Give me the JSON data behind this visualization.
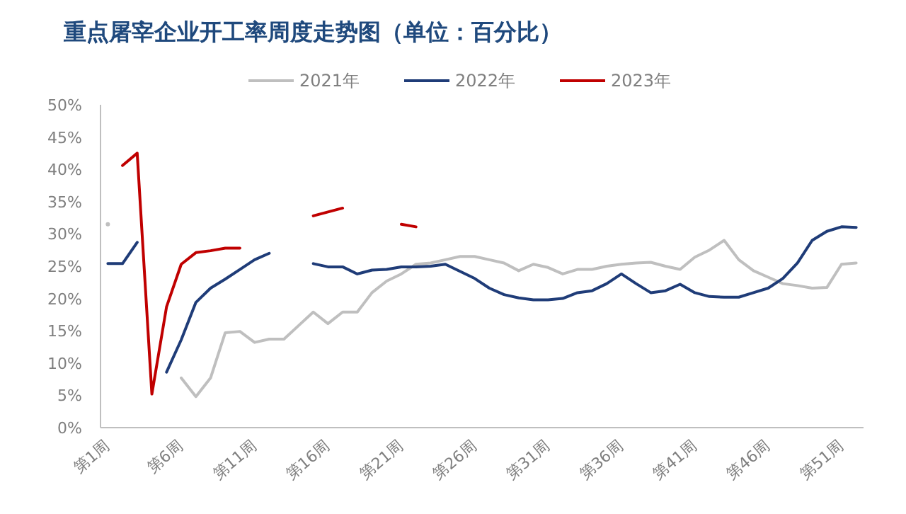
{
  "chart_data": {
    "type": "line",
    "title": "重点屠宰企业开工率周度走势图（单位：百分比）",
    "categories": [
      "第1周",
      null,
      null,
      null,
      null,
      "第6周",
      null,
      null,
      null,
      null,
      "第11周",
      null,
      null,
      null,
      null,
      "第16周",
      null,
      null,
      null,
      null,
      "第21周",
      null,
      null,
      null,
      null,
      "第26周",
      null,
      null,
      null,
      null,
      "第31周",
      null,
      null,
      null,
      null,
      "第36周",
      null,
      null,
      null,
      null,
      "第41周",
      null,
      null,
      null,
      null,
      "第46周",
      null,
      null,
      null,
      null,
      "第51周",
      null
    ],
    "series": [
      {
        "name": "2021年",
        "color": "#bfbfbf",
        "values": [
          31.5,
          null,
          null,
          null,
          null,
          7.7,
          4.8,
          7.7,
          14.7,
          14.9,
          13.2,
          13.7,
          13.7,
          15.8,
          17.9,
          16.1,
          17.9,
          17.9,
          20.9,
          22.7,
          23.8,
          25.3,
          25.5,
          26,
          26.5,
          26.5,
          26,
          25.5,
          24.3,
          25.3,
          24.8,
          23.8,
          24.5,
          24.5,
          25,
          25.3,
          25.5,
          25.6,
          25,
          24.5,
          26.4,
          27.5,
          29,
          26,
          24.3,
          23.3,
          22.3,
          22,
          21.6,
          21.7,
          25.3,
          25.5
        ]
      },
      {
        "name": "2022年",
        "color": "#1f3c78",
        "values": [
          25.4,
          25.4,
          28.7,
          null,
          8.6,
          13.6,
          19.4,
          21.6,
          23,
          24.5,
          26,
          27,
          null,
          null,
          25.4,
          24.9,
          24.9,
          23.8,
          24.4,
          24.5,
          24.9,
          24.9,
          25,
          25.3,
          24.2,
          23.1,
          21.6,
          20.6,
          20.1,
          19.8,
          19.8,
          20,
          20.9,
          21.2,
          22.3,
          23.8,
          22.3,
          20.9,
          21.2,
          22.2,
          20.9,
          20.3,
          20.2,
          20.2,
          20.9,
          21.6,
          23.1,
          25.5,
          29,
          30.4,
          31.1,
          31
        ]
      },
      {
        "name": "2023年",
        "color": "#c00000",
        "values": [
          null,
          40.6,
          42.5,
          5.2,
          18.7,
          25.3,
          27.1,
          27.4,
          27.8,
          27.8,
          null,
          null,
          null,
          null,
          32.8,
          33.4,
          34,
          null,
          null,
          null,
          31.5,
          31.1,
          null,
          null,
          null,
          null,
          null,
          null,
          null,
          null,
          null,
          null,
          null,
          null,
          null,
          null,
          null,
          null,
          null,
          null,
          null,
          null,
          null,
          null,
          null,
          null,
          null,
          null,
          null,
          null,
          null,
          null
        ]
      }
    ],
    "ylim": [
      0,
      50
    ],
    "yticks": [
      {
        "value": 0,
        "label": "0%"
      },
      {
        "value": 5,
        "label": "5%"
      },
      {
        "value": 10,
        "label": "10%"
      },
      {
        "value": 15,
        "label": "15%"
      },
      {
        "value": 20,
        "label": "20%"
      },
      {
        "value": 25,
        "label": "25%"
      },
      {
        "value": 30,
        "label": "30%"
      },
      {
        "value": 35,
        "label": "35%"
      },
      {
        "value": 40,
        "label": "40%"
      },
      {
        "value": 45,
        "label": "45%"
      },
      {
        "value": 50,
        "label": "50%"
      }
    ],
    "legend": "top",
    "grid": false,
    "marker": "none",
    "line_style": "solid"
  }
}
